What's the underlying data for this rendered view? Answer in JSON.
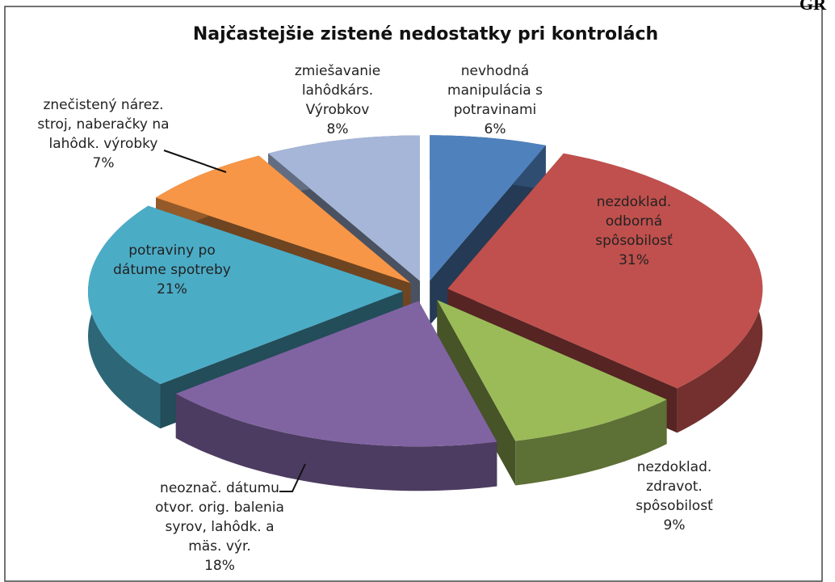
{
  "corner_text": "GR",
  "chart_data": {
    "type": "pie3d",
    "title": "Najčastejšie zistené nedostatky pri kontrolách",
    "categories": [
      "nevhodná\nmanipulácia s\npotravinami",
      "nezdoklad.\nodborná\nspôsobilosť",
      "nezdoklad.\nzdravot.\nspôsobilosť",
      "neoznač. dátumu\notvor. orig. balenia\nsyrov, lahôdk. a\nmäs. výr.",
      "potraviny po\ndátume spotreby",
      "znečistený nárez.\nstroj, naberačky na\nlahôdk. výrobky",
      "zmiešavanie\nlahôdkárs.\nVýrobkov"
    ],
    "values": [
      6,
      31,
      9,
      18,
      21,
      7,
      8
    ],
    "value_labels": [
      "6%",
      "31%",
      "9%",
      "18%",
      "21%",
      "7%",
      "8%"
    ],
    "colors": [
      "#4f81bd",
      "#c0504d",
      "#9bbb59",
      "#8064a2",
      "#4bacc6",
      "#f79646",
      "#a5b6d8"
    ]
  }
}
